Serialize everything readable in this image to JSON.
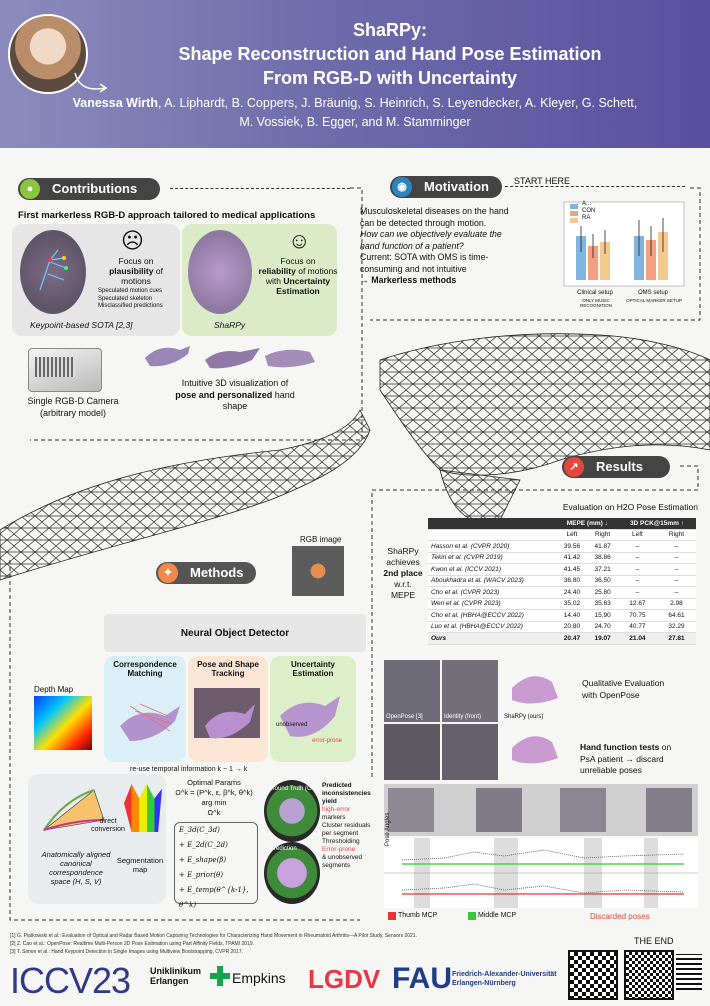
{
  "header": {
    "title_line1": "ShaRPy:",
    "title_line2": "Shape Reconstruction and Hand Pose Estimation",
    "title_line3": "From RGB-D with Uncertainty",
    "first_author": "Vanessa Wirth",
    "authors_rest_line1": ", A. Liphardt, B. Coppers, J. Bräunig, S. Heinrich, S. Leyendecker, A. Kleyer, G. Schett,",
    "authors_line2": "M. Vossiek, B. Egger, and M. Stamminger"
  },
  "contributions": {
    "title": "Contributions",
    "headline": "First markerless RGB-D approach tailored to medical applications",
    "left_focus_pre": "Focus on",
    "left_focus_b1": "plausibility",
    "left_focus_post": "of motions",
    "left_bullets": [
      "Speculated motion cues",
      "Speculated skeleton",
      "Misclassified predictions"
    ],
    "left_caption": "Keypoint-based SOTA [2,3]",
    "right_focus_pre": "Focus on",
    "right_focus_b1": "reliability",
    "right_focus_mid": "of motions with",
    "right_focus_b2": "Uncertainty Estimation",
    "right_caption": "ShaRPy",
    "camera_label1": "Single RGB-D Camera",
    "camera_label2": "(arbitrary model)",
    "viz_label1": "Intuitive 3D visualization of",
    "viz_label2_pre": "pose and ",
    "viz_label2_b": "personalized",
    "viz_label2_post": " hand",
    "viz_label3": "shape",
    "sad_face": "☹",
    "happy_face": "☺"
  },
  "motivation": {
    "title": "Motivation",
    "start_here": "START HERE",
    "line1": "Musculoskeletal diseases on the hand",
    "line2": "can be detected through motion.",
    "line3": "How can we objectively evaluate the",
    "line4": "hand function of a patient?",
    "line5": "Current: SOTA with OMS is time-",
    "line6": "consuming and not intuitive",
    "line7": "→ Markerless methods",
    "chart_legend": [
      "A...",
      "CON",
      "RA"
    ],
    "chart_x": [
      "Clinical setup",
      "OMS setup"
    ],
    "chart_x_sub": [
      "ONLY MUSIC RECOGNITION",
      "OPTICAL MARKER SETUP"
    ]
  },
  "methods": {
    "title": "Methods",
    "rgb_label": "RGB image",
    "detector": "Neural Object Detector",
    "corr": "Correspondence Matching",
    "pose_shape": "Pose and Shape Tracking",
    "uncert": "Uncertainty Estimation",
    "unobserved": "unobserved",
    "error_prone": "error-prone",
    "depth_label": "Depth Map",
    "reuse": "re-use temporal information k − 1 → k",
    "direct": "direct conversion",
    "canon1": "Anatomically aligned",
    "canon2": "canonical",
    "canon3": "correspondence",
    "canon4": "space (H, S, V)",
    "seg1": "Segmentation",
    "seg2": "map",
    "opt_title": "Optimal Params",
    "opt_eq": "Ω^k = (P^k, ε, β^k, θ^k)",
    "argmin": "arg min",
    "omega": "Ω^k",
    "terms": [
      "E_3d(C_3d)",
      "+ E_2d(C_2d)",
      "+ E_shape(β)",
      "+ E_prior(θ)",
      "+ E_temp(θ^{k-1}, θ^k)"
    ],
    "gt_label": "Ground Truth (GT)",
    "pred_label": "Prediction",
    "predicted_title": "Predicted inconsistencies",
    "yields": "yield",
    "high_error": "high-error",
    "markers": "markers",
    "steps": [
      "Cluster residuals per segment",
      "Thresholding"
    ],
    "err_prone_seg": "Error-prone",
    "and_unobs": "& unobserved",
    "segments": "segments"
  },
  "results": {
    "title": "Results",
    "eval_title": "Evaluation on H2O Pose Estimation",
    "side_text": [
      "ShaRPy",
      "achieves",
      "2nd place",
      "w.r.t.",
      "MEPE"
    ],
    "table_head": [
      "MEPE (mm) ↓",
      "3D PCK@15mm ↑"
    ],
    "sub_head": [
      "Left",
      "Right",
      "Left",
      "Right"
    ],
    "rows": [
      [
        "Hasson et al. (CVPR 2020)",
        "39.56",
        "41.87",
        "–",
        "–"
      ],
      [
        "Tekin et al. (CVPR 2019)",
        "41.42",
        "38.86",
        "–",
        "–"
      ],
      [
        "Kwon et al. (ICCV 2021)",
        "41.45",
        "37.21",
        "–",
        "–"
      ],
      [
        "Aboukhadra et al. (WACV 2023)",
        "36.80",
        "36.50",
        "–",
        "–"
      ],
      [
        "Cho et al. (CVPR 2023)",
        "24.40",
        "25.80",
        "–",
        "–"
      ],
      [
        "Wen et al. (CVPR 2023)",
        "35.02",
        "35.63",
        "12.67",
        "2.98"
      ],
      [
        "Cho et al. (HBHA@ECCV 2022)",
        "14.40",
        "15.90",
        "70.75",
        "64.61"
      ],
      [
        "Luo et al. (HBHA@ECCV 2022)",
        "20.80",
        "24.70",
        "40.77",
        "32.29"
      ],
      [
        "Ours",
        "20.47",
        "19.07",
        "21.04",
        "27.81"
      ]
    ],
    "qual_text1": "Qualitative Evaluation",
    "qual_text2": "with OpenPose",
    "hand_test1": "Hand function tests",
    "hand_test2": "on",
    "hand_test3": "PsA patient → discard",
    "hand_test4": "unreliable poses",
    "thumbs": [
      "OpenPose [3]",
      "Identity (front)",
      "ShaRPy (ours)"
    ],
    "legend_thumb": "Thumb MCP",
    "legend_middle": "Middle MCP",
    "discarded": "Discarded poses",
    "y_label_top": "Pose Angles",
    "y_label_bot": "Pose Angles"
  },
  "footer": {
    "refs": [
      "[1] G. Piatkowski et al.: Evaluation of Optical and Radar Based Motion Capturing Technologies for Characterizing Hand Movement in Rheumatoid Arthritis—A Pilot Study, Sensors 2021.",
      "[2] Z. Cao et al.: OpenPose: Realtime Multi-Person 2D Pose Estimation using Part Affinity Fields, TPAMI 2019.",
      "[3] T. Simon et al.: Hand Keypoint Detection in Single Images using Multiview Bootstrapping, CVPR 2017."
    ],
    "the_end": "THE END",
    "iccv": "ICCV23",
    "uk1": "Uniklinikum",
    "uk2": "Erlangen",
    "empkins": "Empkins",
    "lgdv": "LGDV",
    "fau": "FAU",
    "fau_sub1": "Friedrich-Alexander-Universität",
    "fau_sub2": "Erlangen-Nürnberg"
  },
  "colors": {
    "accent_green": "#8cc63f",
    "accent_red": "#e8463a",
    "accent_blue": "#2e86c1",
    "accent_orange": "#f08a4b",
    "header_purple": "#6f6cab"
  }
}
